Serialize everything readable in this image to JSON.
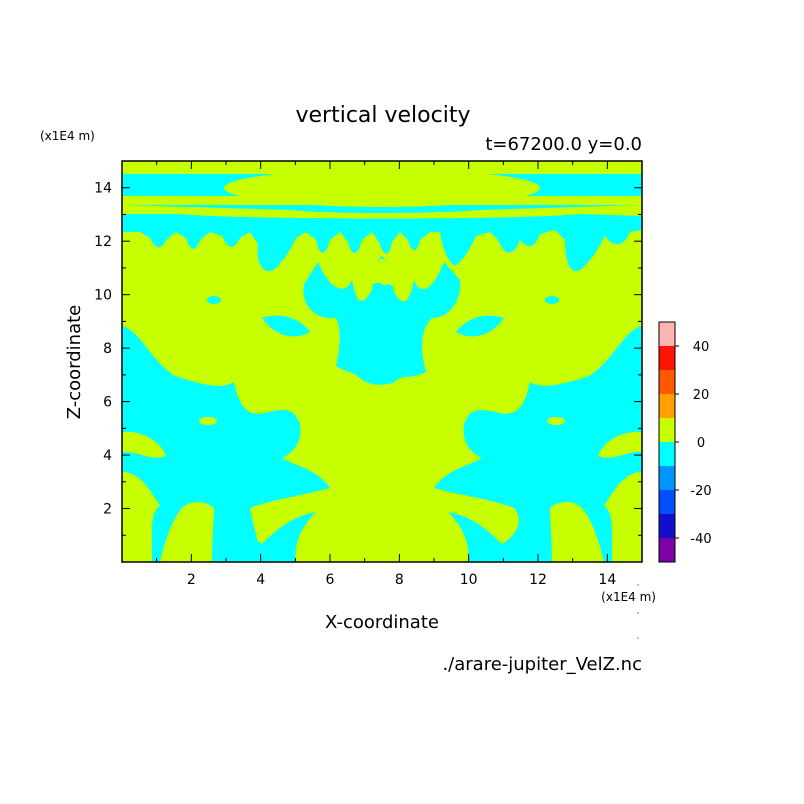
{
  "chart_data": {
    "type": "heatmap",
    "title": "vertical velocity",
    "subtitle": "t=67200.0 y=0.0",
    "xlabel": "X-coordinate",
    "ylabel": "Z-coordinate",
    "x_unit": "(x1E4 m)",
    "y_unit": "(x1E4 m)",
    "xlim": [
      0,
      15
    ],
    "ylim": [
      0,
      15
    ],
    "x_ticks": [
      2,
      4,
      6,
      8,
      10,
      12,
      14
    ],
    "y_ticks": [
      2,
      4,
      6,
      8,
      10,
      12,
      14
    ],
    "file_label": "./arare-jupiter_VelZ.nc",
    "colorbar": {
      "levels": [
        -50,
        -40,
        -30,
        -20,
        -10,
        0,
        10,
        20,
        30,
        40,
        50
      ],
      "colors": [
        "#7d00a8",
        "#1010c8",
        "#0050ff",
        "#0096ff",
        "#00ffff",
        "#c8ff00",
        "#ffa000",
        "#ff5a00",
        "#ff1400",
        "#ffb4b4"
      ],
      "tick_labels": [
        "40",
        "20",
        "0",
        "-20",
        "-40"
      ],
      "tick_values": [
        40,
        20,
        0,
        -20,
        -40
      ]
    },
    "field_colors": {
      "positive": "#c8ff00",
      "negative": "#00ffff"
    },
    "negative_regions": [
      {
        "x0": 0,
        "z0": 13.0,
        "x1": 15,
        "z1": 14.45,
        "note": "upper band"
      },
      {
        "x0": 6.7,
        "z0": 5.9,
        "x1": 8.3,
        "z1": 10.4,
        "note": "central column"
      },
      {
        "x0": 0,
        "z0": 0.9,
        "x1": 3.2,
        "z1": 8.2,
        "note": "left lobe"
      },
      {
        "x0": 11.8,
        "z0": 0.9,
        "x1": 15,
        "z1": 8.2,
        "note": "right lobe"
      }
    ]
  }
}
